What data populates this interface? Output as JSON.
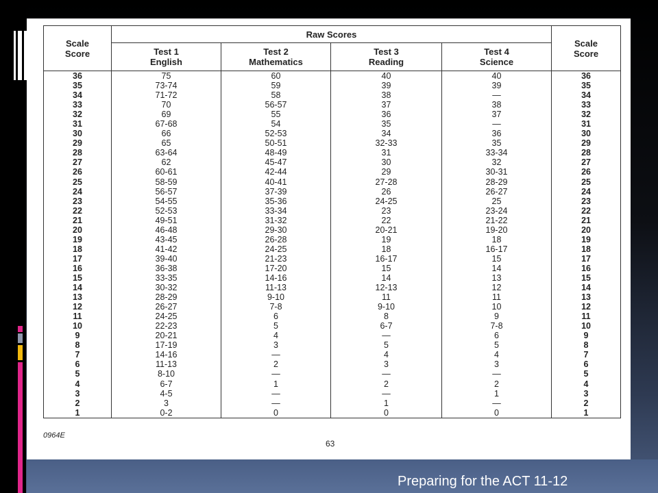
{
  "table": {
    "raw_scores_header": "Raw Scores",
    "scale_header_line1": "Scale",
    "scale_header_line2": "Score",
    "tests": [
      {
        "line1": "Test 1",
        "line2": "English"
      },
      {
        "line1": "Test 2",
        "line2": "Mathematics"
      },
      {
        "line1": "Test 3",
        "line2": "Reading"
      },
      {
        "line1": "Test 4",
        "line2": "Science"
      }
    ],
    "scale_scores": [
      "36",
      "35",
      "34",
      "33",
      "32",
      "31",
      "30",
      "29",
      "28",
      "27",
      "26",
      "25",
      "24",
      "23",
      "22",
      "21",
      "20",
      "19",
      "18",
      "17",
      "16",
      "15",
      "14",
      "13",
      "12",
      "11",
      "10",
      "9",
      "8",
      "7",
      "6",
      "5",
      "4",
      "3",
      "2",
      "1"
    ],
    "english": [
      "75",
      "73-74",
      "71-72",
      "70",
      "69",
      "67-68",
      "66",
      "65",
      "63-64",
      "62",
      "60-61",
      "58-59",
      "56-57",
      "54-55",
      "52-53",
      "49-51",
      "46-48",
      "43-45",
      "41-42",
      "39-40",
      "36-38",
      "33-35",
      "30-32",
      "28-29",
      "26-27",
      "24-25",
      "22-23",
      "20-21",
      "17-19",
      "14-16",
      "11-13",
      "8-10",
      "6-7",
      "4-5",
      "3",
      "0-2"
    ],
    "mathematics": [
      "60",
      "59",
      "58",
      "56-57",
      "55",
      "54",
      "52-53",
      "50-51",
      "48-49",
      "45-47",
      "42-44",
      "40-41",
      "37-39",
      "35-36",
      "33-34",
      "31-32",
      "29-30",
      "26-28",
      "24-25",
      "21-23",
      "17-20",
      "14-16",
      "11-13",
      "9-10",
      "7-8",
      "6",
      "5",
      "4",
      "3",
      "—",
      "2",
      "—",
      "1",
      "—",
      "—",
      "0"
    ],
    "reading": [
      "40",
      "39",
      "38",
      "37",
      "36",
      "35",
      "34",
      "32-33",
      "31",
      "30",
      "29",
      "27-28",
      "26",
      "24-25",
      "23",
      "22",
      "20-21",
      "19",
      "18",
      "16-17",
      "15",
      "14",
      "12-13",
      "11",
      "9-10",
      "8",
      "6-7",
      "—",
      "5",
      "4",
      "3",
      "—",
      "2",
      "—",
      "1",
      "0"
    ],
    "science": [
      "40",
      "39",
      "—",
      "38",
      "37",
      "—",
      "36",
      "35",
      "33-34",
      "32",
      "30-31",
      "28-29",
      "26-27",
      "25",
      "23-24",
      "21-22",
      "19-20",
      "18",
      "16-17",
      "15",
      "14",
      "13",
      "12",
      "11",
      "10",
      "9",
      "7-8",
      "6",
      "5",
      "4",
      "3",
      "—",
      "2",
      "1",
      "—",
      "0"
    ]
  },
  "footnote_code": "0964E",
  "page_number": "63",
  "footer_title": "Preparing for the ACT 11-12"
}
